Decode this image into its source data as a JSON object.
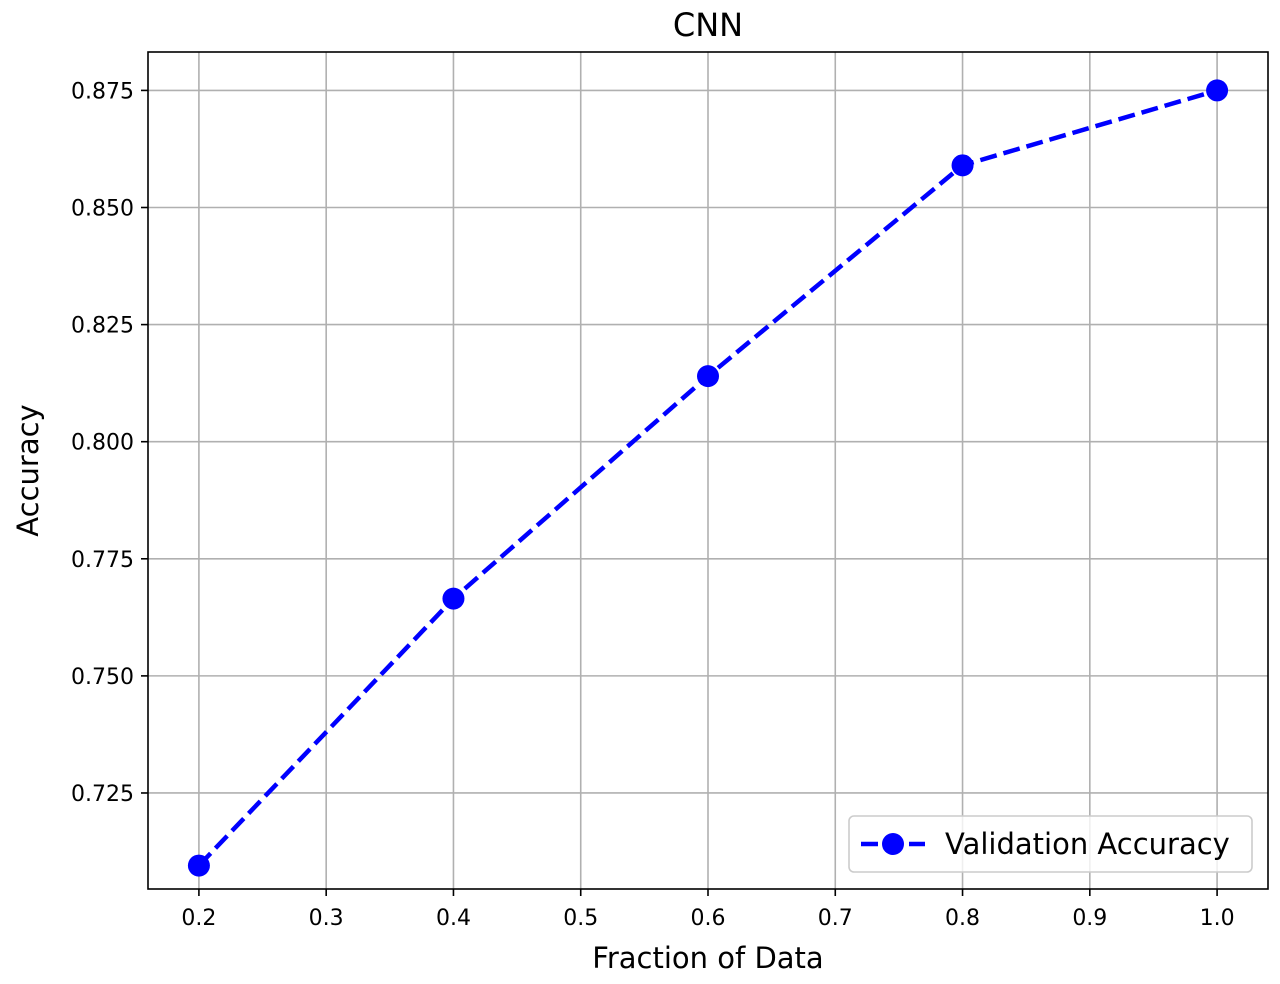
{
  "chart_data": {
    "type": "line",
    "title": "CNN",
    "xlabel": "Fraction of Data",
    "ylabel": "Accuracy",
    "xlim": [
      0.16,
      1.04
    ],
    "ylim": [
      0.7045,
      0.8832
    ],
    "grid": true,
    "legend_position": "lower right",
    "x_ticks": [
      {
        "value": 0.2,
        "label": "0.2"
      },
      {
        "value": 0.3,
        "label": "0.3"
      },
      {
        "value": 0.4,
        "label": "0.4"
      },
      {
        "value": 0.5,
        "label": "0.5"
      },
      {
        "value": 0.6,
        "label": "0.6"
      },
      {
        "value": 0.7,
        "label": "0.7"
      },
      {
        "value": 0.8,
        "label": "0.8"
      },
      {
        "value": 0.9,
        "label": "0.9"
      },
      {
        "value": 1.0,
        "label": "1.0"
      }
    ],
    "y_ticks": [
      {
        "value": 0.725,
        "label": "0.725"
      },
      {
        "value": 0.75,
        "label": "0.750"
      },
      {
        "value": 0.775,
        "label": "0.775"
      },
      {
        "value": 0.8,
        "label": "0.800"
      },
      {
        "value": 0.825,
        "label": "0.825"
      },
      {
        "value": 0.85,
        "label": "0.850"
      },
      {
        "value": 0.875,
        "label": "0.875"
      }
    ],
    "series": [
      {
        "name": "Validation Accuracy",
        "color": "#0000ff",
        "line_style": "dashed",
        "marker": "circle",
        "x": [
          0.2,
          0.4,
          0.6,
          0.8,
          1.0
        ],
        "y": [
          0.7095,
          0.7665,
          0.814,
          0.859,
          0.875
        ]
      }
    ]
  }
}
